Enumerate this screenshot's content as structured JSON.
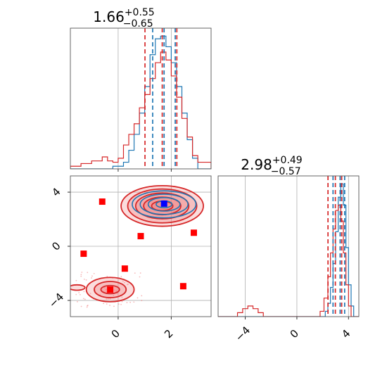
{
  "colors": {
    "blue": "#1f77b4",
    "red": "#d62728",
    "red_fill": "#f08080",
    "marker_red": "#ff0000",
    "marker_blue": "#0000ff",
    "grid": "#b0b0b0",
    "frame": "#555555"
  },
  "chart_data": [
    {
      "type": "histogram",
      "panel": "marginal-x1",
      "title": {
        "value": "1.66",
        "sup": "+0.55",
        "sub": "−0.65"
      },
      "xlim": [
        -1.8,
        3.5
      ],
      "grid": true,
      "quantile_lines": {
        "red": [
          1.01,
          1.66,
          2.21
        ],
        "blue": [
          1.3,
          1.73,
          2.15
        ]
      },
      "series": [
        {
          "color": "blue",
          "bins": [
            -1.8,
            -0.2,
            0.2,
            0.4,
            0.6,
            0.8,
            1.0,
            1.2,
            1.4,
            1.6,
            1.8,
            2.0,
            2.2,
            2.4,
            2.6,
            2.8,
            3.0,
            3.5
          ],
          "counts": [
            0,
            2,
            5,
            14,
            26,
            42,
            62,
            86,
            98,
            100,
            92,
            80,
            62,
            42,
            22,
            8,
            0
          ]
        },
        {
          "color": "red",
          "bins": [
            -1.8,
            -1.4,
            -1.0,
            -0.6,
            -0.4,
            -0.2,
            0.0,
            0.2,
            0.4,
            0.6,
            0.8,
            1.0,
            1.2,
            1.4,
            1.6,
            1.8,
            2.0,
            2.2,
            2.4,
            2.6,
            2.8,
            3.0,
            3.5
          ],
          "counts": [
            2,
            4,
            6,
            9,
            6,
            5,
            8,
            18,
            26,
            34,
            46,
            56,
            68,
            80,
            88,
            82,
            70,
            54,
            38,
            24,
            10,
            5,
            0
          ]
        }
      ]
    },
    {
      "type": "histogram",
      "panel": "marginal-x2",
      "title": {
        "value": "2.98",
        "sup": "+0.49",
        "sub": "−0.57"
      },
      "xlim": [
        -6.1,
        4.8
      ],
      "xticks": [
        -4,
        0,
        4
      ],
      "xtick_labels": [
        "−4",
        "0",
        "4"
      ],
      "grid": true,
      "quantile_lines": {
        "red": [
          2.41,
          2.98,
          3.47
        ],
        "blue": [
          2.8,
          3.35,
          3.7
        ]
      },
      "series": [
        {
          "color": "blue",
          "bins": [
            -6.1,
            2.2,
            2.4,
            2.6,
            2.8,
            3.0,
            3.2,
            3.4,
            3.6,
            3.8,
            4.0,
            4.2,
            4.4,
            4.8
          ],
          "counts": [
            0,
            4,
            10,
            22,
            40,
            64,
            90,
            100,
            84,
            52,
            24,
            8,
            0
          ]
        },
        {
          "color": "red",
          "bins": [
            -6.1,
            -4.6,
            -4.2,
            -3.8,
            -3.4,
            -3.0,
            -2.6,
            1.8,
            2.1,
            2.4,
            2.6,
            2.8,
            3.0,
            3.2,
            3.4,
            3.6,
            3.8,
            4.0,
            4.2,
            4.8
          ],
          "counts": [
            0,
            3,
            6,
            8,
            6,
            3,
            0,
            4,
            14,
            30,
            48,
            66,
            80,
            84,
            72,
            48,
            24,
            8,
            0
          ]
        }
      ]
    },
    {
      "type": "scatter",
      "panel": "joint",
      "xlim": [
        -1.8,
        3.5
      ],
      "ylim": [
        -5.2,
        5.2
      ],
      "xticks": [
        0,
        2
      ],
      "xtick_labels": [
        "0",
        "2"
      ],
      "yticks": [
        -4,
        0,
        4
      ],
      "ytick_labels": [
        "−4",
        "0",
        "4"
      ],
      "grid": true,
      "contours": [
        {
          "color": "red",
          "filled": true,
          "cx": 1.66,
          "cy": 2.98,
          "rx": [
            1.55,
            1.3,
            1.0,
            0.7,
            0.4
          ],
          "ry": [
            1.5,
            1.25,
            0.95,
            0.65,
            0.35
          ]
        },
        {
          "color": "blue",
          "filled": false,
          "cx": 1.73,
          "cy": 3.1,
          "rx": [
            1.2,
            0.9,
            0.6,
            0.3
          ],
          "ry": [
            1.0,
            0.75,
            0.5,
            0.25
          ]
        },
        {
          "color": "red",
          "filled": true,
          "cx": -0.3,
          "cy": -3.2,
          "rx": [
            0.9,
            0.6,
            0.35
          ],
          "ry": [
            0.9,
            0.6,
            0.3
          ]
        },
        {
          "color": "red",
          "filled": true,
          "cx": -1.55,
          "cy": -3.05,
          "rx": [
            0.3
          ],
          "ry": [
            0.2
          ]
        }
      ],
      "markers": [
        {
          "x": -0.6,
          "y": 3.3,
          "color": "red"
        },
        {
          "x": 2.85,
          "y": 1.0,
          "color": "red"
        },
        {
          "x": 0.85,
          "y": 0.75,
          "color": "red"
        },
        {
          "x": -1.3,
          "y": -0.55,
          "color": "red"
        },
        {
          "x": 0.25,
          "y": -1.65,
          "color": "red"
        },
        {
          "x": 2.45,
          "y": -2.95,
          "color": "red"
        },
        {
          "x": -0.3,
          "y": -3.2,
          "color": "red"
        },
        {
          "x": 1.73,
          "y": 3.15,
          "color": "blue"
        }
      ]
    }
  ]
}
